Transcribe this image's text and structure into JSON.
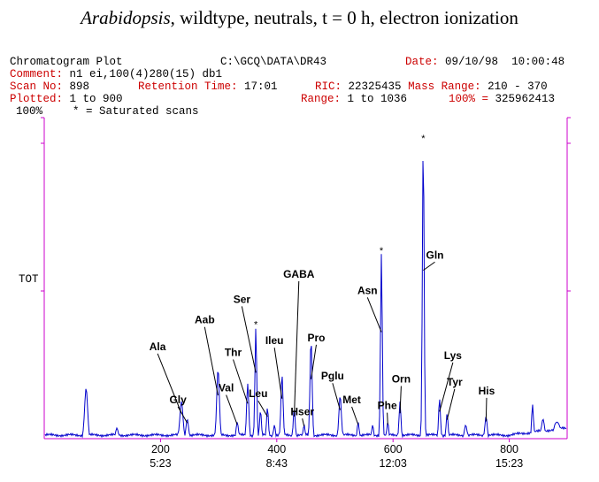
{
  "title": {
    "italic": "Arabidopsis",
    "rest": ", wildtype, neutrals, t = 0 h, electron ionization"
  },
  "header": {
    "plot_name": "Chromatogram Plot",
    "path": "C:\\GCQ\\DATA\\DR43",
    "date_label": "Date:",
    "date_value": "09/10/98",
    "time_value": "10:00:48",
    "comment_label": "Comment:",
    "comment_value": "n1 ei,100(4)280(15) db1",
    "scan_label": "Scan No:",
    "scan_value": "898",
    "rt_label": "Retention Time:",
    "rt_value": "17:01",
    "ric_label": "RIC:",
    "ric_value": "22325435",
    "mass_label": "Mass Range:",
    "mass_value": "210 - 370",
    "plotted_label": "Plotted:",
    "plotted_value": "1 to 900",
    "range_label": "Range:",
    "range_value": "1 to 1036",
    "pct_label": "100% =",
    "pct_value": "325962413",
    "scale_100": "100%",
    "saturated_note": "* = Saturated scans",
    "tot_label": "TOT"
  },
  "colors": {
    "trace": "#0000cc",
    "frame": "#cc00cc",
    "label_key": "#cc0000"
  },
  "chart_data": {
    "type": "line",
    "x_axis": {
      "range": [
        0,
        900
      ],
      "ticks": [
        {
          "scan": "200",
          "time": "5:23",
          "x": 200
        },
        {
          "scan": "400",
          "time": "8:43",
          "x": 400
        },
        {
          "scan": "600",
          "time": "12:03",
          "x": 600
        },
        {
          "scan": "800",
          "time": "15:23",
          "x": 800
        }
      ]
    },
    "y_axis": {
      "range": [
        0,
        100
      ],
      "label": "TOT"
    },
    "baseline": 1.2,
    "peaks": [
      {
        "x": 72,
        "y": 16.5,
        "w": 2.5
      },
      {
        "x": 125,
        "y": 3,
        "w": 2
      },
      {
        "x": 236,
        "y": 12,
        "w": 2.5,
        "label": "Ala",
        "lx": 195,
        "ly": 30
      },
      {
        "x": 246,
        "y": 6,
        "w": 2,
        "label": "Gly",
        "lx": 230,
        "ly": 12
      },
      {
        "x": 299,
        "y": 23,
        "w": 2.2,
        "label": "Aab",
        "lx": 276,
        "ly": 39
      },
      {
        "x": 332,
        "y": 5,
        "w": 1.8,
        "label": "Val",
        "lx": 313,
        "ly": 16
      },
      {
        "x": 350,
        "y": 18,
        "w": 1.8,
        "label": "Thr",
        "lx": 325,
        "ly": 28
      },
      {
        "x": 364,
        "y": 37,
        "w": 1.5,
        "label": "Ser",
        "lx": 340,
        "ly": 46,
        "sat": true
      },
      {
        "x": 372,
        "y": 9,
        "w": 1.5
      },
      {
        "x": 384,
        "y": 10,
        "w": 1.5,
        "label": "Leu",
        "lx": 368,
        "ly": 14
      },
      {
        "x": 396,
        "y": 4,
        "w": 1.5
      },
      {
        "x": 409,
        "y": 21,
        "w": 1.8,
        "label": "Ileu",
        "lx": 396,
        "ly": 32
      },
      {
        "x": 430,
        "y": 10,
        "w": 1.5,
        "label": "GABA",
        "lx": 438,
        "ly": 54.5
      },
      {
        "x": 447,
        "y": 4,
        "w": 1.5,
        "label": "Hser",
        "lx": 444,
        "ly": 8
      },
      {
        "x": 459,
        "y": 33,
        "w": 1.8,
        "label": "Pro",
        "lx": 468,
        "ly": 33
      },
      {
        "x": 509,
        "y": 14,
        "w": 2,
        "label": "Pglu",
        "lx": 496,
        "ly": 20
      },
      {
        "x": 540,
        "y": 5,
        "w": 1.5,
        "label": "Met",
        "lx": 529,
        "ly": 12
      },
      {
        "x": 565,
        "y": 4,
        "w": 1.5
      },
      {
        "x": 580,
        "y": 62,
        "w": 1.5,
        "label": "Asn",
        "lx": 556,
        "ly": 49,
        "sat": true
      },
      {
        "x": 591,
        "y": 5,
        "w": 1.5,
        "label": "Phe",
        "lx": 590,
        "ly": 10
      },
      {
        "x": 612,
        "y": 12,
        "w": 1.5,
        "label": "Orn",
        "lx": 614,
        "ly": 19
      },
      {
        "x": 652,
        "y": 100,
        "w": 1.5,
        "label": "Gln",
        "lx": 672,
        "ly": 61,
        "sat": true
      },
      {
        "x": 680,
        "y": 13,
        "w": 1.5,
        "label": "Lys",
        "lx": 703,
        "ly": 27
      },
      {
        "x": 693,
        "y": 8,
        "w": 1.5,
        "label": "Tyr",
        "lx": 706,
        "ly": 18
      },
      {
        "x": 725,
        "y": 4,
        "w": 2
      },
      {
        "x": 760,
        "y": 7,
        "w": 1.8,
        "label": "His",
        "lx": 761,
        "ly": 15
      },
      {
        "x": 840,
        "y": 11,
        "w": 1.5
      },
      {
        "x": 858,
        "y": 6,
        "w": 2.5
      },
      {
        "x": 882,
        "y": 5,
        "w": 6
      }
    ]
  }
}
